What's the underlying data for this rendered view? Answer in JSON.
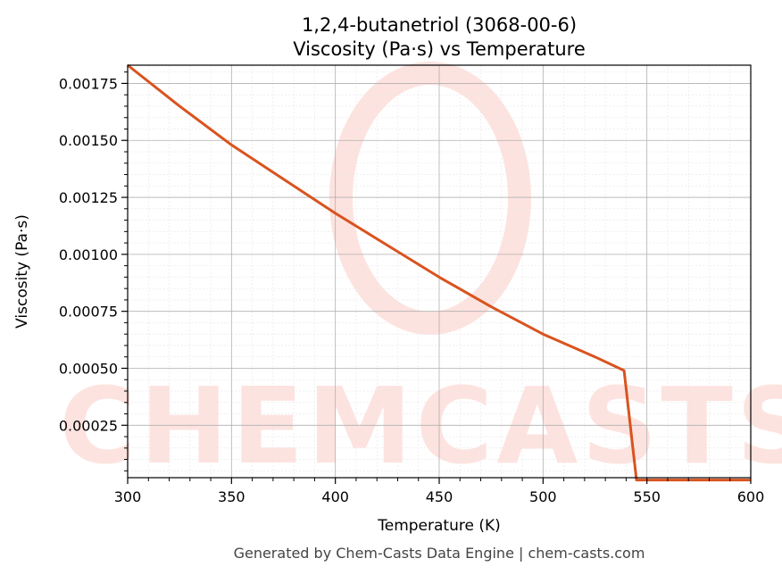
{
  "chart_data": {
    "type": "line",
    "title": "1,2,4-butanetriol (3068-00-6)",
    "subtitle": "Viscosity (Pa·s) vs Temperature",
    "xlabel": "Temperature (K)",
    "ylabel": "Viscosity (Pa·s)",
    "xlim": [
      300,
      600
    ],
    "ylim": [
      2e-05,
      0.00183
    ],
    "xticks": [
      "300",
      "350",
      "400",
      "450",
      "500",
      "550",
      "600"
    ],
    "yticks": [
      "0.00025",
      "0.00050",
      "0.00075",
      "0.00100",
      "0.00125",
      "0.00150",
      "0.00175"
    ],
    "grid": true,
    "series": [
      {
        "color": "#d9531e",
        "x": [
          300,
          325,
          350,
          375,
          400,
          425,
          450,
          475,
          500,
          525,
          539,
          545,
          550,
          600
        ],
        "y": [
          0.00183,
          0.00165,
          0.00148,
          0.00133,
          0.00118,
          0.00104,
          0.0009,
          0.00077,
          0.00065,
          0.00055,
          0.00049,
          1e-05,
          1e-05,
          1e-05
        ]
      }
    ]
  },
  "watermark": {
    "text": "CHEMCASTS"
  },
  "footer": {
    "text": "Generated by Chem-Casts Data Engine | chem-casts.com"
  }
}
